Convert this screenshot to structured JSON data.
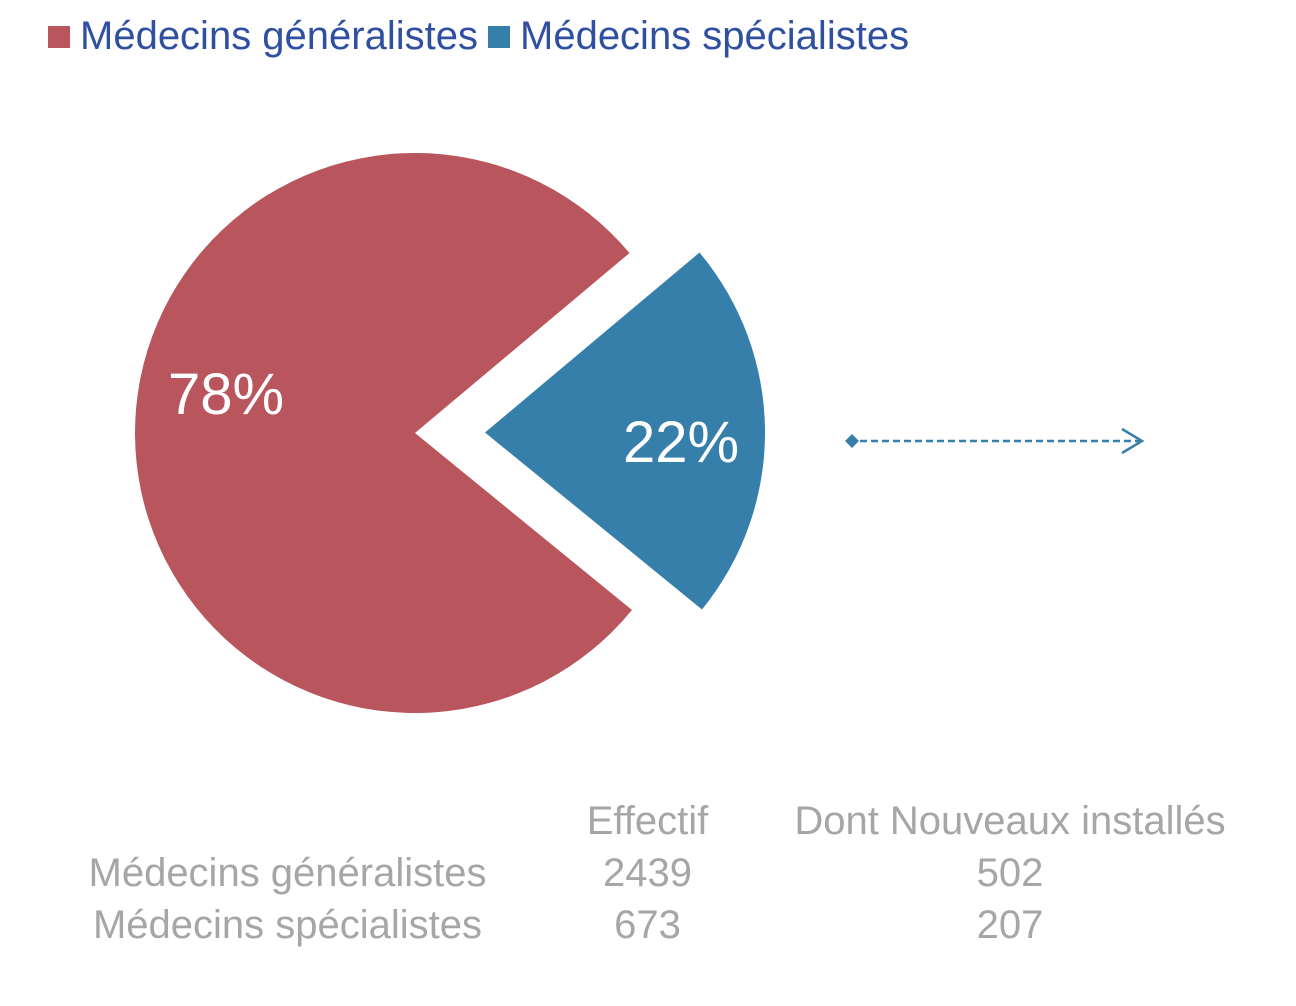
{
  "chart_data": {
    "type": "pie",
    "legend": "top-left",
    "categories": [
      "Médecins généralistes",
      "Médecins spécialistes"
    ],
    "values": [
      78,
      22
    ],
    "labels": [
      "78%",
      "22%"
    ],
    "colors": [
      "#b9555c",
      "#367fab"
    ],
    "exploded": [
      false,
      true
    ]
  },
  "table": {
    "headers": [
      "",
      "Effectif",
      "Dont Nouveaux installés"
    ],
    "rows": [
      [
        "Médecins généralistes",
        "2439",
        "502"
      ],
      [
        "Médecins spécialistes",
        "673",
        "207"
      ]
    ]
  },
  "connector_color": "#367fab"
}
